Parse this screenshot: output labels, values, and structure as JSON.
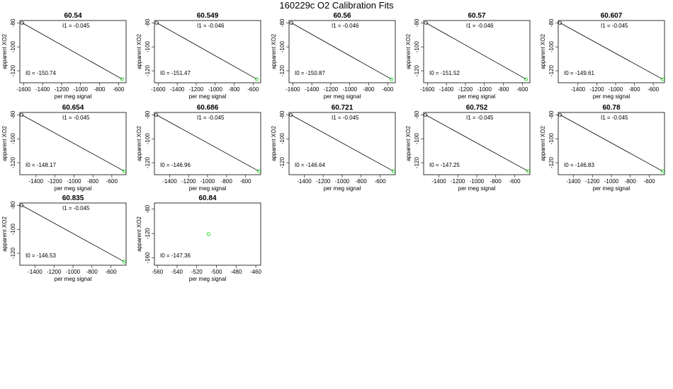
{
  "main_title": "160229c   O2 Calibration Fits",
  "colors": {
    "reference_point": "#000000",
    "sample_point": "#00dd00",
    "fit_line": "#000000"
  },
  "chart_data": [
    {
      "type": "scatter",
      "title": "60.54",
      "xlabel": "per meg signal",
      "ylabel": "apparent XO2",
      "xticks": [
        -1600,
        -1400,
        -1200,
        -1000,
        -800,
        -600
      ],
      "yticks": [
        -80,
        -100,
        -120
      ],
      "xlim": [
        -1640,
        -520
      ],
      "ylim": [
        -130,
        -78
      ],
      "points_black": [
        {
          "x": -1615,
          "y": -80
        }
      ],
      "points_green": [
        {
          "x": -560,
          "y": -127
        }
      ],
      "fit_line": {
        "x": [
          -1615,
          -560
        ],
        "y": [
          -80,
          -127
        ]
      },
      "i1_label": "I1 =  -0.045",
      "i0_label": "I0 =  -150.74"
    },
    {
      "type": "scatter",
      "title": "60.549",
      "xlabel": "per meg signal",
      "ylabel": "apparent XO2",
      "xticks": [
        -1600,
        -1400,
        -1200,
        -1000,
        -800,
        -600
      ],
      "yticks": [
        -80,
        -100,
        -120
      ],
      "xlim": [
        -1640,
        -520
      ],
      "ylim": [
        -130,
        -78
      ],
      "points_black": [
        {
          "x": -1615,
          "y": -80
        }
      ],
      "points_green": [
        {
          "x": -560,
          "y": -127
        }
      ],
      "fit_line": {
        "x": [
          -1615,
          -560
        ],
        "y": [
          -80,
          -127
        ]
      },
      "i1_label": "I1 =  -0.046",
      "i0_label": "I0 =  -151.47"
    },
    {
      "type": "scatter",
      "title": "60.56",
      "xlabel": "per meg signal",
      "ylabel": "apparent XO2",
      "xticks": [
        -1600,
        -1400,
        -1200,
        -1000,
        -800,
        -600
      ],
      "yticks": [
        -80,
        -100,
        -120
      ],
      "xlim": [
        -1640,
        -520
      ],
      "ylim": [
        -130,
        -78
      ],
      "points_black": [
        {
          "x": -1615,
          "y": -80
        }
      ],
      "points_green": [
        {
          "x": -560,
          "y": -127
        }
      ],
      "fit_line": {
        "x": [
          -1615,
          -560
        ],
        "y": [
          -80,
          -127
        ]
      },
      "i1_label": "I1 =  -0.046",
      "i0_label": "I0 =  -150.87"
    },
    {
      "type": "scatter",
      "title": "60.57",
      "xlabel": "per meg signal",
      "ylabel": "apparent XO2",
      "xticks": [
        -1600,
        -1400,
        -1200,
        -1000,
        -800,
        -600
      ],
      "yticks": [
        -80,
        -100,
        -120
      ],
      "xlim": [
        -1640,
        -520
      ],
      "ylim": [
        -130,
        -78
      ],
      "points_black": [
        {
          "x": -1615,
          "y": -80
        }
      ],
      "points_green": [
        {
          "x": -560,
          "y": -127
        }
      ],
      "fit_line": {
        "x": [
          -1615,
          -560
        ],
        "y": [
          -80,
          -127
        ]
      },
      "i1_label": "I1 =  -0.046",
      "i0_label": "I0 =  -151.52"
    },
    {
      "type": "scatter",
      "title": "60.607",
      "xlabel": "per meg signal",
      "ylabel": "apparent XO2",
      "xticks": [
        -1400,
        -1200,
        -1000,
        -800,
        -600
      ],
      "yticks": [
        -80,
        -100,
        -120
      ],
      "xlim": [
        -1610,
        -480
      ],
      "ylim": [
        -130,
        -78
      ],
      "points_black": [
        {
          "x": -1590,
          "y": -80
        }
      ],
      "points_green": [
        {
          "x": -500,
          "y": -127
        }
      ],
      "fit_line": {
        "x": [
          -1590,
          -500
        ],
        "y": [
          -80,
          -127
        ]
      },
      "i1_label": "I1 =  -0.045",
      "i0_label": "I0 =  -149.61"
    },
    {
      "type": "scatter",
      "title": "60.654",
      "xlabel": "per meg signal",
      "ylabel": "apparent XO2",
      "xticks": [
        -1400,
        -1200,
        -1000,
        -800,
        -600
      ],
      "yticks": [
        -80,
        -100,
        -120
      ],
      "xlim": [
        -1570,
        -450
      ],
      "ylim": [
        -130,
        -78
      ],
      "points_black": [
        {
          "x": -1550,
          "y": -80
        }
      ],
      "points_green": [
        {
          "x": -470,
          "y": -127
        }
      ],
      "fit_line": {
        "x": [
          -1550,
          -470
        ],
        "y": [
          -80,
          -127
        ]
      },
      "i1_label": "I1 =  -0.045",
      "i0_label": "I0 =  -148.17"
    },
    {
      "type": "scatter",
      "title": "60.686",
      "xlabel": "per meg signal",
      "ylabel": "apparent XO2",
      "xticks": [
        -1400,
        -1200,
        -1000,
        -800,
        -600
      ],
      "yticks": [
        -80,
        -100,
        -120
      ],
      "xlim": [
        -1560,
        -440
      ],
      "ylim": [
        -130,
        -78
      ],
      "points_black": [
        {
          "x": -1540,
          "y": -80
        }
      ],
      "points_green": [
        {
          "x": -460,
          "y": -127
        }
      ],
      "fit_line": {
        "x": [
          -1540,
          -460
        ],
        "y": [
          -80,
          -127
        ]
      },
      "i1_label": "I1 =  -0.045",
      "i0_label": "I0 =  -146.96"
    },
    {
      "type": "scatter",
      "title": "60.721",
      "xlabel": "per meg signal",
      "ylabel": "apparent XO2",
      "xticks": [
        -1400,
        -1200,
        -1000,
        -800,
        -600
      ],
      "yticks": [
        -80,
        -100,
        -120
      ],
      "xlim": [
        -1560,
        -440
      ],
      "ylim": [
        -130,
        -78
      ],
      "points_black": [
        {
          "x": -1540,
          "y": -80
        }
      ],
      "points_green": [
        {
          "x": -460,
          "y": -127
        }
      ],
      "fit_line": {
        "x": [
          -1540,
          -460
        ],
        "y": [
          -80,
          -127
        ]
      },
      "i1_label": "I1 =  -0.045",
      "i0_label": "I0 =  -146.64"
    },
    {
      "type": "scatter",
      "title": "60.752",
      "xlabel": "per meg signal",
      "ylabel": "apparent XO2",
      "xticks": [
        -1400,
        -1200,
        -1000,
        -800,
        -600
      ],
      "yticks": [
        -80,
        -100,
        -120
      ],
      "xlim": [
        -1560,
        -440
      ],
      "ylim": [
        -130,
        -78
      ],
      "points_black": [
        {
          "x": -1540,
          "y": -80
        }
      ],
      "points_green": [
        {
          "x": -460,
          "y": -127
        }
      ],
      "fit_line": {
        "x": [
          -1540,
          -460
        ],
        "y": [
          -80,
          -127
        ]
      },
      "i1_label": "I1 =  -0.045",
      "i0_label": "I0 =  -147.25"
    },
    {
      "type": "scatter",
      "title": "60.78",
      "xlabel": "per meg signal",
      "ylabel": "apparent XO2",
      "xticks": [
        -1400,
        -1200,
        -1000,
        -800,
        -600
      ],
      "yticks": [
        -80,
        -100,
        -120
      ],
      "xlim": [
        -1560,
        -440
      ],
      "ylim": [
        -130,
        -78
      ],
      "points_black": [
        {
          "x": -1540,
          "y": -80
        }
      ],
      "points_green": [
        {
          "x": -460,
          "y": -127
        }
      ],
      "fit_line": {
        "x": [
          -1540,
          -460
        ],
        "y": [
          -80,
          -127
        ]
      },
      "i1_label": "I1 =  -0.045",
      "i0_label": "I0 =  -146.83"
    },
    {
      "type": "scatter",
      "title": "60.835",
      "xlabel": "per meg signal",
      "ylabel": "apparent XO2",
      "xticks": [
        -1400,
        -1200,
        -1000,
        -800,
        -600
      ],
      "yticks": [
        -80,
        -100,
        -120
      ],
      "xlim": [
        -1560,
        -440
      ],
      "ylim": [
        -130,
        -78
      ],
      "points_black": [
        {
          "x": -1540,
          "y": -80
        }
      ],
      "points_green": [
        {
          "x": -460,
          "y": -127
        }
      ],
      "fit_line": {
        "x": [
          -1540,
          -460
        ],
        "y": [
          -80,
          -127
        ]
      },
      "i1_label": "I1 =  -0.045",
      "i0_label": "I0 =  -146.53"
    },
    {
      "type": "scatter",
      "title": "60.84",
      "xlabel": "per meg signal",
      "ylabel": "apparent XO2",
      "xticks": [
        -560,
        -540,
        -520,
        -500,
        -480,
        -460
      ],
      "yticks": [
        -80,
        -120,
        -160
      ],
      "xlim": [
        -563,
        -455
      ],
      "ylim": [
        -172,
        -70
      ],
      "points_black": [],
      "points_green": [
        {
          "x": -508,
          "y": -121
        }
      ],
      "fit_line": null,
      "i1_label": "",
      "i0_label": "I0 =  -147.36"
    }
  ]
}
